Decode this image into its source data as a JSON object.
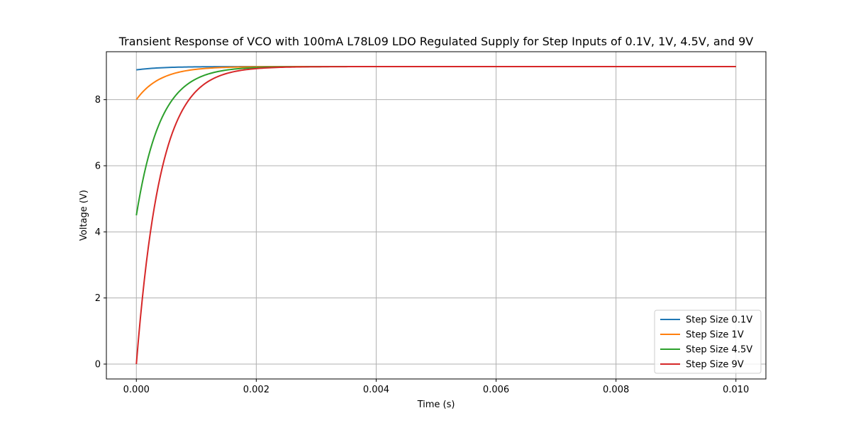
{
  "chart_data": {
    "type": "line",
    "title": "Transient Response of VCO with 100mA L78L09 LDO Regulated Supply for Step Inputs of 0.1V, 1V, 4.5V, and 9V",
    "xlabel": "Time (s)",
    "ylabel": "Voltage (V)",
    "xlim": [
      -0.0005,
      0.0105
    ],
    "ylim": [
      -0.45,
      9.45
    ],
    "xticks": [
      0.0,
      0.002,
      0.004,
      0.006,
      0.008,
      0.01
    ],
    "xtick_labels": [
      "0.000",
      "0.002",
      "0.004",
      "0.006",
      "0.008",
      "0.010"
    ],
    "yticks": [
      0,
      2,
      4,
      6,
      8
    ],
    "ytick_labels": [
      "0",
      "2",
      "4",
      "6",
      "8"
    ],
    "grid": true,
    "legend": "lower-right",
    "final_value": 9.0,
    "tau": 0.0004,
    "x_range": [
      0.0,
      0.01
    ],
    "series": [
      {
        "name": "Step Size 0.1V",
        "start": 8.9,
        "color": "#1f77b4"
      },
      {
        "name": "Step Size 1V",
        "start": 8.0,
        "color": "#ff7f0e"
      },
      {
        "name": "Step Size 4.5V",
        "start": 4.5,
        "color": "#2ca02c"
      },
      {
        "name": "Step Size 9V",
        "start": 0.0,
        "color": "#d62728"
      }
    ]
  }
}
